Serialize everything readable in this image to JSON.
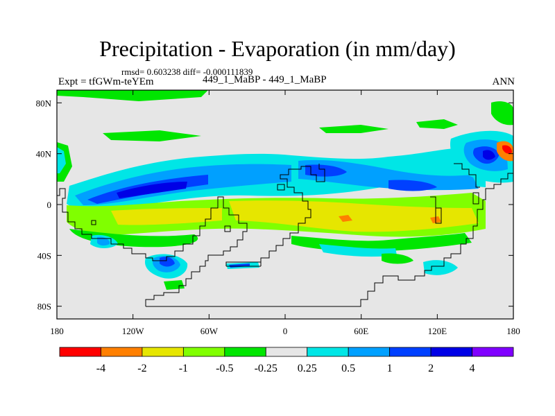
{
  "chart_data": {
    "type": "heatmap",
    "title": "Precipitation - Evaporation (in mm/day)",
    "stats": "rmsd= 0.603238  diff= -0.000111839",
    "left_label": "Expt = tfGWm-teYEm",
    "subtitle": "449_1_MaBP - 449_1_MaBP",
    "right_label": "ANN",
    "xlim": [
      -180,
      180
    ],
    "ylim": [
      -90,
      90
    ],
    "x_ticks": [
      {
        "value": -180,
        "label": "180"
      },
      {
        "value": -120,
        "label": "120W"
      },
      {
        "value": -60,
        "label": "60W"
      },
      {
        "value": 0,
        "label": "0"
      },
      {
        "value": 60,
        "label": "60E"
      },
      {
        "value": 120,
        "label": "120E"
      },
      {
        "value": 180,
        "label": "180"
      }
    ],
    "y_ticks": [
      {
        "value": 80,
        "label": "80N"
      },
      {
        "value": 40,
        "label": "40N"
      },
      {
        "value": 0,
        "label": "0"
      },
      {
        "value": -40,
        "label": "40S"
      },
      {
        "value": -80,
        "label": "80S"
      }
    ],
    "colorbar": {
      "levels": [
        "-4",
        "-2",
        "-1",
        "-0.5",
        "-0.25",
        "0.25",
        "0.5",
        "1",
        "2",
        "4"
      ],
      "colors": [
        "#ff0000",
        "#ff7f00",
        "#e6e600",
        "#80ff00",
        "#00e600",
        "#e6e6e6",
        "#00e6e6",
        "#00a0ff",
        "#0040ff",
        "#0000e6",
        "#8000ff"
      ]
    },
    "background_color": "#e6e6e6"
  }
}
